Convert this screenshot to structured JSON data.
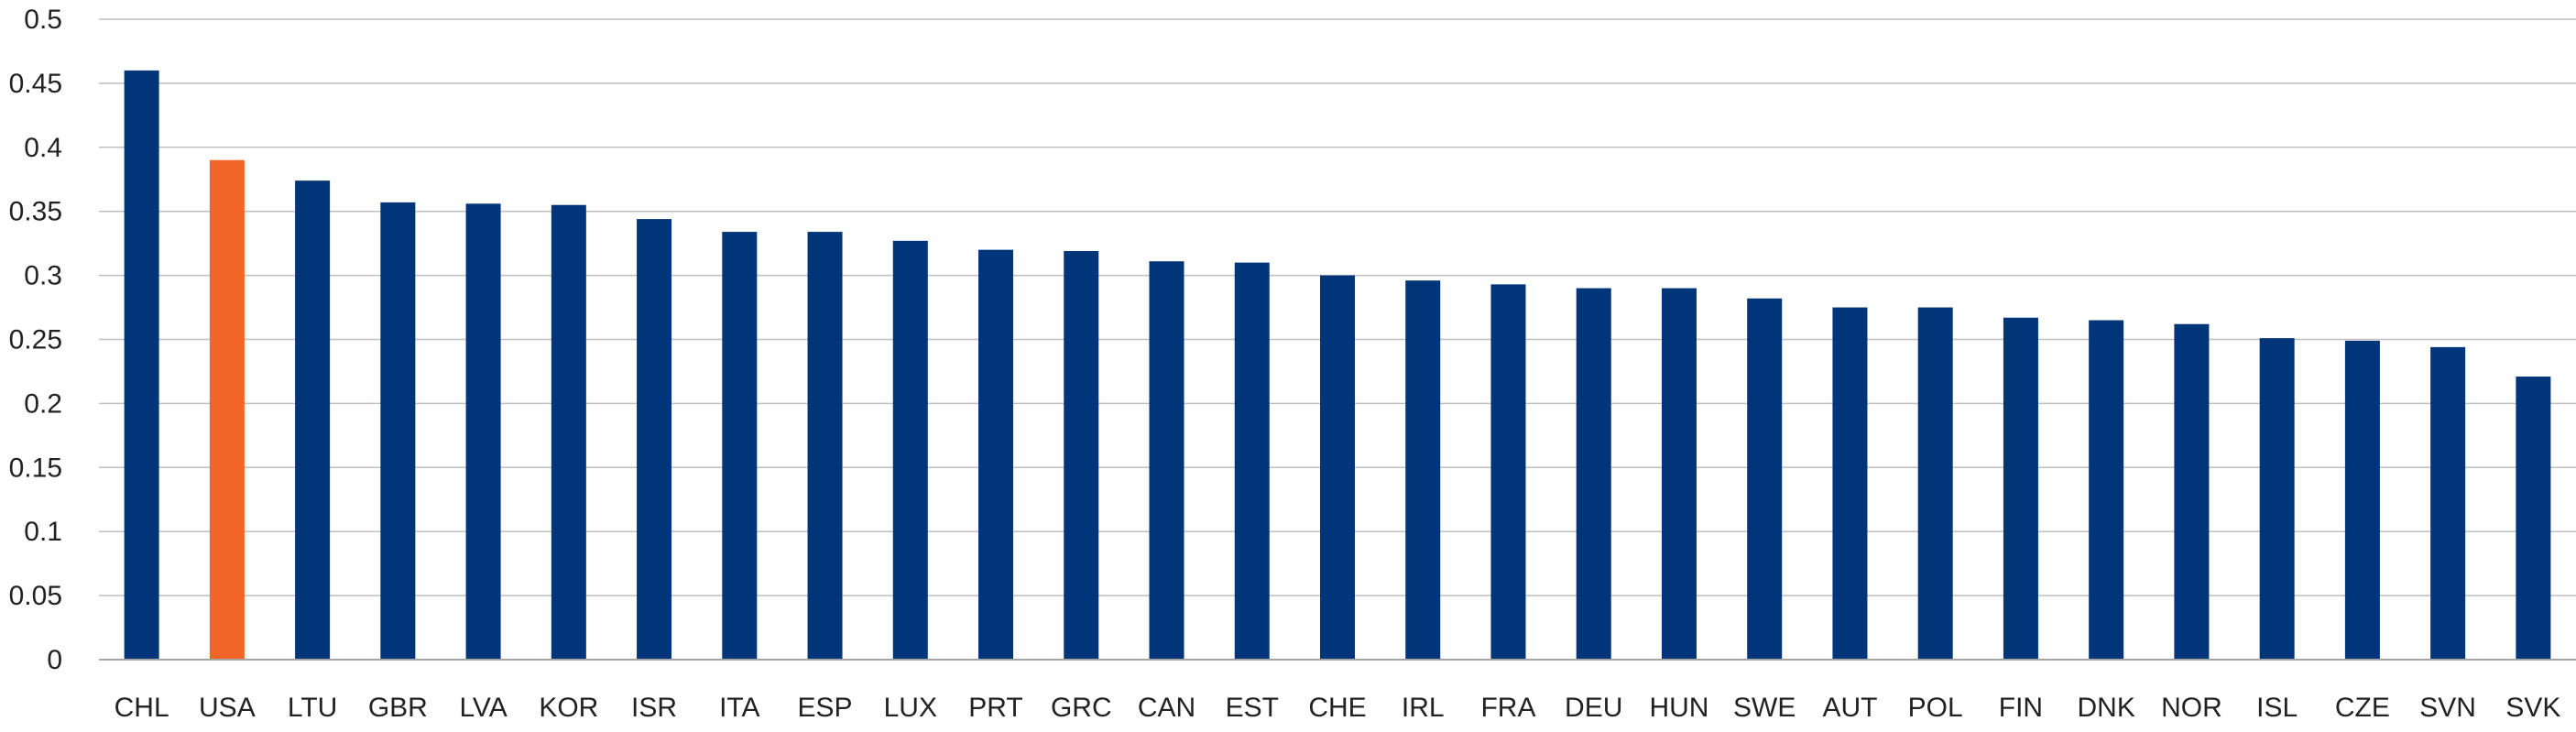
{
  "chart_data": {
    "type": "bar",
    "categories": [
      "CHL",
      "USA",
      "LTU",
      "GBR",
      "LVA",
      "KOR",
      "ISR",
      "ITA",
      "ESP",
      "LUX",
      "PRT",
      "GRC",
      "CAN",
      "EST",
      "CHE",
      "IRL",
      "FRA",
      "DEU",
      "HUN",
      "SWE",
      "AUT",
      "POL",
      "FIN",
      "DNK",
      "NOR",
      "ISL",
      "CZE",
      "SVN",
      "SVK"
    ],
    "values": [
      0.46,
      0.39,
      0.374,
      0.357,
      0.356,
      0.355,
      0.344,
      0.334,
      0.334,
      0.327,
      0.32,
      0.319,
      0.311,
      0.31,
      0.3,
      0.296,
      0.293,
      0.29,
      0.29,
      0.282,
      0.275,
      0.275,
      0.267,
      0.265,
      0.262,
      0.251,
      0.249,
      0.244,
      0.221
    ],
    "highlight": [
      "USA"
    ],
    "title": "",
    "xlabel": "",
    "ylabel": "",
    "ylim": [
      0,
      0.5
    ],
    "yticks": [
      "0",
      "0.05",
      "0.1",
      "0.15",
      "0.2",
      "0.25",
      "0.3",
      "0.35",
      "0.4",
      "0.45",
      "0.5"
    ],
    "grid": true,
    "legend": "none",
    "colors": {
      "bar": "#00357A",
      "highlight": "#F26527",
      "grid": "#BFBFBF",
      "axis": "#A6A6A6",
      "text": "#222222"
    }
  }
}
